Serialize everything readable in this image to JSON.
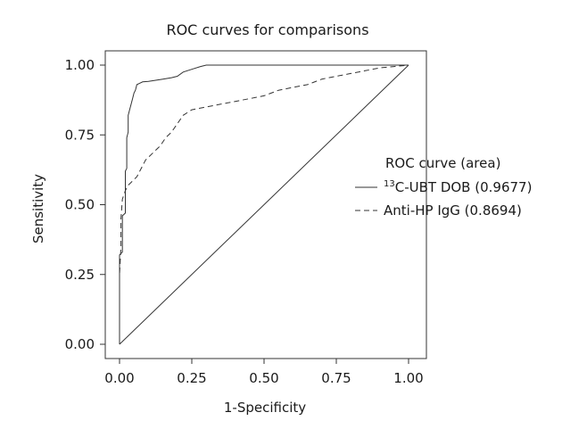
{
  "chart_data": {
    "type": "line",
    "title": "ROC curves for comparisons",
    "xlabel": "1-Specificity",
    "ylabel": "Sensitivity",
    "xlim": [
      -0.05,
      1.05
    ],
    "ylim": [
      -0.05,
      1.05
    ],
    "x_ticks": [
      "0.00",
      "0.25",
      "0.50",
      "0.75",
      "1.00"
    ],
    "y_ticks": [
      "0.00",
      "0.25",
      "0.50",
      "0.75",
      "1.00"
    ],
    "grid": false,
    "legend_position": "right",
    "legend_title": "ROC curve (area)",
    "series": [
      {
        "name": "13C-UBT DOB (0.9677)",
        "name_superscript": "13",
        "name_rest": "C-UBT DOB (0.9677)",
        "style": "solid",
        "color": "#333333",
        "points": [
          [
            0.0,
            0.0
          ],
          [
            0.0,
            0.1
          ],
          [
            0.0,
            0.2
          ],
          [
            0.0,
            0.32
          ],
          [
            0.01,
            0.33
          ],
          [
            0.01,
            0.46
          ],
          [
            0.02,
            0.47
          ],
          [
            0.02,
            0.62
          ],
          [
            0.025,
            0.63
          ],
          [
            0.025,
            0.74
          ],
          [
            0.03,
            0.76
          ],
          [
            0.03,
            0.82
          ],
          [
            0.035,
            0.84
          ],
          [
            0.04,
            0.86
          ],
          [
            0.045,
            0.88
          ],
          [
            0.05,
            0.9
          ],
          [
            0.055,
            0.91
          ],
          [
            0.06,
            0.93
          ],
          [
            0.07,
            0.935
          ],
          [
            0.08,
            0.94
          ],
          [
            0.1,
            0.942
          ],
          [
            0.12,
            0.945
          ],
          [
            0.15,
            0.95
          ],
          [
            0.18,
            0.955
          ],
          [
            0.2,
            0.96
          ],
          [
            0.22,
            0.975
          ],
          [
            0.25,
            0.985
          ],
          [
            0.28,
            0.995
          ],
          [
            0.3,
            1.0
          ],
          [
            0.5,
            1.0
          ],
          [
            0.75,
            1.0
          ],
          [
            1.0,
            1.0
          ]
        ]
      },
      {
        "name": "Anti-HP IgG (0.8694)",
        "style": "dashed",
        "color": "#333333",
        "points": [
          [
            0.0,
            0.0
          ],
          [
            0.0,
            0.1
          ],
          [
            0.0,
            0.25
          ],
          [
            0.005,
            0.35
          ],
          [
            0.005,
            0.45
          ],
          [
            0.01,
            0.52
          ],
          [
            0.02,
            0.55
          ],
          [
            0.03,
            0.57
          ],
          [
            0.04,
            0.58
          ],
          [
            0.05,
            0.59
          ],
          [
            0.06,
            0.6
          ],
          [
            0.07,
            0.62
          ],
          [
            0.08,
            0.64
          ],
          [
            0.09,
            0.66
          ],
          [
            0.1,
            0.67
          ],
          [
            0.12,
            0.69
          ],
          [
            0.14,
            0.71
          ],
          [
            0.16,
            0.74
          ],
          [
            0.18,
            0.76
          ],
          [
            0.2,
            0.79
          ],
          [
            0.22,
            0.82
          ],
          [
            0.25,
            0.84
          ],
          [
            0.3,
            0.85
          ],
          [
            0.35,
            0.86
          ],
          [
            0.4,
            0.87
          ],
          [
            0.45,
            0.88
          ],
          [
            0.5,
            0.89
          ],
          [
            0.55,
            0.91
          ],
          [
            0.6,
            0.92
          ],
          [
            0.65,
            0.93
          ],
          [
            0.7,
            0.95
          ],
          [
            0.75,
            0.96
          ],
          [
            0.8,
            0.97
          ],
          [
            0.85,
            0.98
          ],
          [
            0.9,
            0.99
          ],
          [
            0.95,
            0.995
          ],
          [
            1.0,
            1.0
          ]
        ]
      },
      {
        "name": "",
        "style": "solid",
        "color": "#333333",
        "role": "reference-diagonal",
        "points": [
          [
            0.0,
            0.0
          ],
          [
            1.0,
            1.0
          ]
        ]
      }
    ]
  }
}
